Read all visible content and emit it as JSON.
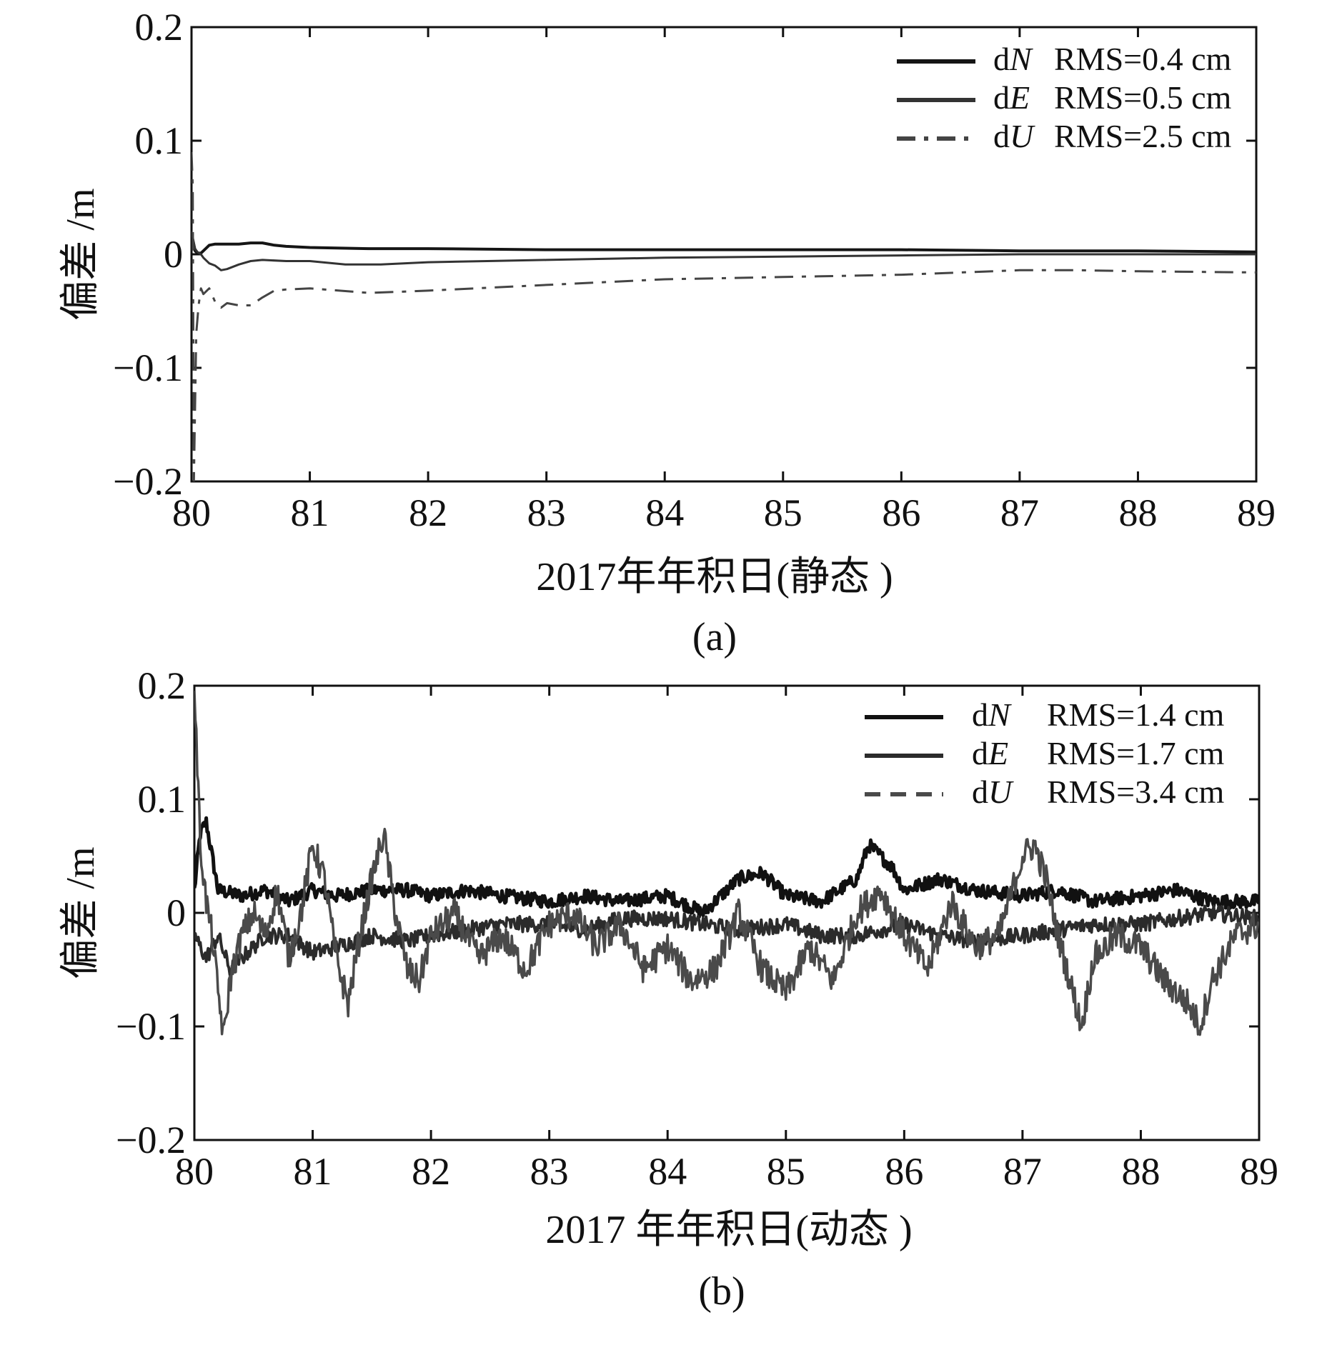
{
  "chart_data": [
    {
      "type": "line",
      "xlabel": "2017年年积日(静态 )",
      "ylabel": "偏差 /m",
      "caption": "(a)",
      "xlim": [
        80,
        89
      ],
      "ylim": [
        -0.2,
        0.2
      ],
      "xticks": [
        "80",
        "81",
        "82",
        "83",
        "84",
        "85",
        "86",
        "87",
        "88",
        "89"
      ],
      "yticks": [
        "0.2",
        "0.1",
        "0",
        "−0.1",
        "−0.2"
      ],
      "legend_position": "top-right",
      "series": [
        {
          "name": "dN",
          "rms": "RMS=0.4 cm",
          "color": "#151515",
          "style": "solid",
          "x": [
            80.0,
            80.03,
            80.05,
            80.08,
            80.1,
            80.15,
            80.2,
            80.3,
            80.4,
            80.5,
            80.6,
            80.7,
            80.8,
            81.0,
            81.5,
            82.0,
            83.0,
            84.0,
            85.0,
            86.0,
            87.0,
            88.0,
            89.0
          ],
          "y": [
            0.018,
            0.003,
            0.001,
            0.001,
            0.003,
            0.008,
            0.009,
            0.009,
            0.009,
            0.01,
            0.01,
            0.008,
            0.007,
            0.006,
            0.005,
            0.005,
            0.004,
            0.004,
            0.004,
            0.004,
            0.003,
            0.003,
            0.002
          ]
        },
        {
          "name": "dE",
          "rms": "RMS=0.5 cm",
          "color": "#333333",
          "style": "solid",
          "x": [
            80.0,
            80.03,
            80.05,
            80.08,
            80.1,
            80.15,
            80.2,
            80.25,
            80.3,
            80.4,
            80.5,
            80.6,
            80.8,
            81.0,
            81.3,
            81.6,
            82.0,
            82.5,
            83.0,
            84.0,
            85.0,
            86.0,
            87.0,
            88.0,
            89.0
          ],
          "y": [
            0.02,
            0.005,
            0.002,
            0.0,
            -0.003,
            -0.008,
            -0.01,
            -0.014,
            -0.013,
            -0.009,
            -0.006,
            -0.005,
            -0.006,
            -0.006,
            -0.009,
            -0.009,
            -0.007,
            -0.006,
            -0.005,
            -0.003,
            -0.002,
            -0.001,
            0.0,
            0.0,
            0.0
          ]
        },
        {
          "name": "dU",
          "rms": "RMS=2.5 cm",
          "color": "#444444",
          "style": "dashdot",
          "x": [
            80.0,
            80.01,
            80.02,
            80.04,
            80.06,
            80.08,
            80.1,
            80.15,
            80.2,
            80.25,
            80.3,
            80.4,
            80.5,
            80.6,
            80.7,
            80.8,
            81.0,
            81.5,
            82.0,
            83.0,
            84.0,
            85.0,
            86.0,
            87.0,
            87.5,
            88.0,
            89.0
          ],
          "y": [
            0.09,
            0.06,
            -0.2,
            -0.07,
            -0.045,
            -0.03,
            -0.035,
            -0.03,
            -0.042,
            -0.047,
            -0.043,
            -0.045,
            -0.045,
            -0.038,
            -0.032,
            -0.031,
            -0.03,
            -0.034,
            -0.032,
            -0.027,
            -0.022,
            -0.02,
            -0.018,
            -0.014,
            -0.014,
            -0.015,
            -0.016
          ]
        }
      ]
    },
    {
      "type": "line",
      "xlabel": "2017 年年积日(动态 )",
      "ylabel": "偏差 /m",
      "caption": "(b)",
      "xlim": [
        80,
        89
      ],
      "ylim": [
        -0.2,
        0.2
      ],
      "xticks": [
        "80",
        "81",
        "82",
        "83",
        "84",
        "85",
        "86",
        "87",
        "88",
        "89"
      ],
      "yticks": [
        "0.2",
        "0.1",
        "0",
        "−0.1",
        "−0.2"
      ],
      "legend_position": "top-right",
      "series": [
        {
          "name": "dN",
          "rms": "RMS=1.4 cm",
          "color": "#111111",
          "style": "solid",
          "noise": 0.006,
          "x": [
            80.0,
            80.05,
            80.1,
            80.2,
            80.4,
            80.6,
            80.8,
            81.0,
            81.2,
            81.5,
            81.8,
            82.0,
            82.3,
            82.6,
            83.0,
            83.3,
            83.6,
            84.0,
            84.3,
            84.6,
            84.8,
            85.0,
            85.3,
            85.6,
            85.7,
            85.9,
            86.0,
            86.3,
            86.6,
            87.0,
            87.3,
            87.6,
            88.0,
            88.3,
            88.6,
            89.0
          ],
          "y": [
            0.02,
            0.07,
            0.08,
            0.02,
            0.015,
            0.02,
            0.01,
            0.02,
            0.015,
            0.02,
            0.02,
            0.015,
            0.02,
            0.015,
            0.01,
            0.015,
            0.01,
            0.015,
            0.0,
            0.03,
            0.035,
            0.015,
            0.01,
            0.03,
            0.06,
            0.04,
            0.02,
            0.03,
            0.02,
            0.015,
            0.02,
            0.01,
            0.015,
            0.02,
            0.01,
            0.01
          ]
        },
        {
          "name": "dE",
          "rms": "RMS=1.7 cm",
          "color": "#2b2b2b",
          "style": "solid",
          "noise": 0.007,
          "x": [
            80.0,
            80.05,
            80.1,
            80.2,
            80.3,
            80.4,
            80.6,
            80.8,
            81.0,
            81.2,
            81.5,
            81.8,
            82.0,
            82.3,
            82.6,
            83.0,
            83.3,
            83.6,
            84.0,
            84.3,
            84.6,
            85.0,
            85.3,
            85.6,
            86.0,
            86.3,
            86.6,
            87.0,
            87.3,
            87.6,
            88.0,
            88.3,
            88.6,
            89.0
          ],
          "y": [
            -0.02,
            -0.03,
            -0.04,
            -0.02,
            -0.05,
            -0.04,
            -0.02,
            -0.02,
            -0.035,
            -0.03,
            -0.02,
            -0.025,
            -0.02,
            -0.015,
            -0.01,
            -0.01,
            -0.015,
            -0.005,
            -0.005,
            -0.01,
            -0.015,
            -0.01,
            -0.02,
            -0.02,
            -0.01,
            -0.02,
            -0.025,
            -0.02,
            -0.015,
            -0.01,
            -0.01,
            -0.005,
            0.0,
            -0.005
          ]
        },
        {
          "name": "dU",
          "rms": "RMS=3.4 cm",
          "color": "#4a4a4a",
          "style": "dashed",
          "noise": 0.013,
          "x": [
            80.0,
            80.05,
            80.1,
            80.15,
            80.2,
            80.25,
            80.3,
            80.4,
            80.5,
            80.6,
            80.7,
            80.8,
            80.9,
            81.0,
            81.1,
            81.2,
            81.3,
            81.4,
            81.5,
            81.6,
            81.7,
            81.8,
            81.9,
            82.0,
            82.2,
            82.4,
            82.6,
            82.8,
            83.0,
            83.2,
            83.4,
            83.6,
            83.8,
            84.0,
            84.2,
            84.4,
            84.6,
            84.8,
            85.0,
            85.2,
            85.4,
            85.6,
            85.8,
            86.0,
            86.2,
            86.4,
            86.6,
            86.8,
            87.0,
            87.1,
            87.2,
            87.3,
            87.4,
            87.5,
            87.6,
            87.8,
            88.0,
            88.2,
            88.4,
            88.5,
            88.6,
            88.8,
            89.0
          ],
          "y": [
            0.2,
            0.06,
            0.01,
            -0.02,
            -0.07,
            -0.11,
            -0.06,
            -0.02,
            0.0,
            -0.02,
            0.02,
            -0.04,
            0.0,
            0.06,
            0.03,
            -0.04,
            -0.08,
            -0.02,
            0.03,
            0.07,
            0.0,
            -0.05,
            -0.06,
            -0.02,
            0.0,
            -0.04,
            -0.02,
            -0.05,
            -0.01,
            0.0,
            -0.03,
            -0.01,
            -0.05,
            -0.03,
            -0.06,
            -0.05,
            0.0,
            -0.05,
            -0.07,
            -0.03,
            -0.06,
            0.0,
            0.02,
            -0.02,
            -0.05,
            0.01,
            -0.03,
            -0.02,
            0.05,
            0.06,
            0.03,
            -0.02,
            -0.06,
            -0.1,
            -0.04,
            -0.02,
            -0.03,
            -0.06,
            -0.08,
            -0.1,
            -0.06,
            -0.02,
            -0.01
          ]
        }
      ]
    }
  ]
}
